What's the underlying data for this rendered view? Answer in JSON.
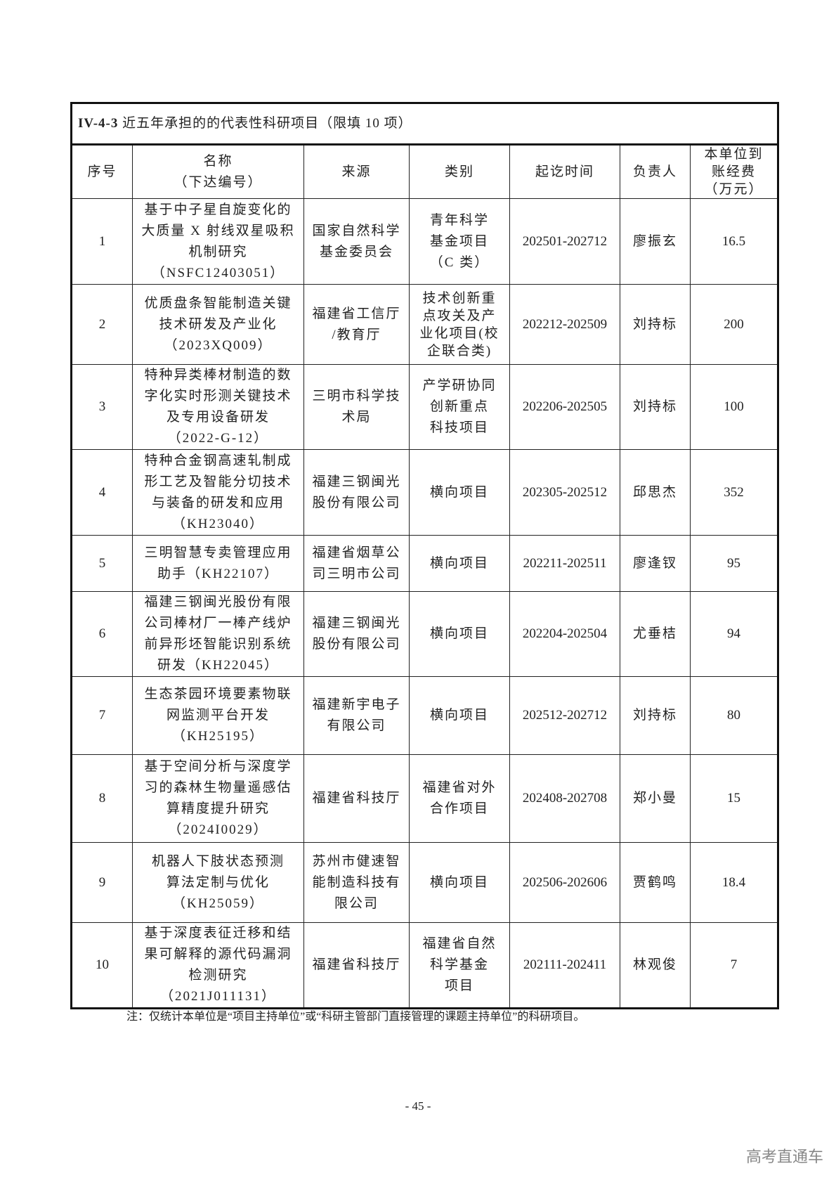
{
  "table": {
    "section_code": "IV-4-3",
    "title": "近五年承担的的代表性科研项目（限填 10 项）",
    "headers": [
      "序号",
      "名称\n（下达编号）",
      "来源",
      "类别",
      "起讫时间",
      "负责人",
      "本单位到\n账经费\n（万元）"
    ],
    "rows": [
      {
        "no": "1",
        "name": "基于中子星自旋变化的\n大质量 X 射线双星吸积\n机制研究\n（NSFC12403051）",
        "source": "国家自然科学\n基金委员会",
        "category": "青年科学\n基金项目\n（C 类）",
        "period": "202501-202712",
        "leader": "廖振玄",
        "funds": "16.5"
      },
      {
        "no": "2",
        "name": "优质盘条智能制造关键\n技术研发及产业化\n（2023XQ009）",
        "source": "福建省工信厅\n/教育厅",
        "category": "技术创新重\n点攻关及产\n业化项目(校\n企联合类)",
        "period": "202212-202509",
        "leader": "刘持标",
        "funds": "200"
      },
      {
        "no": "3",
        "name": "特种异类棒材制造的数\n字化实时形测关键技术\n及专用设备研发\n（2022-G-12）",
        "source": "三明市科学技\n术局",
        "category": "产学研协同\n创新重点\n科技项目",
        "period": "202206-202505",
        "leader": "刘持标",
        "funds": "100"
      },
      {
        "no": "4",
        "name": "特种合金钢高速轧制成\n形工艺及智能分切技术\n与装备的研发和应用\n（KH23040）",
        "source": "福建三钢闽光\n股份有限公司",
        "category": "横向项目",
        "period": "202305-202512",
        "leader": "邱思杰",
        "funds": "352"
      },
      {
        "no": "5",
        "name": "三明智慧专卖管理应用\n助手（KH22107）",
        "source": "福建省烟草公\n司三明市公司",
        "category": "横向项目",
        "period": "202211-202511",
        "leader": "廖逢钗",
        "funds": "95"
      },
      {
        "no": "6",
        "name": "福建三钢闽光股份有限\n公司棒材厂一棒产线炉\n前异形坯智能识别系统\n研发（KH22045）",
        "source": "福建三钢闽光\n股份有限公司",
        "category": "横向项目",
        "period": "202204-202504",
        "leader": "尤垂桔",
        "funds": "94"
      },
      {
        "no": "7",
        "name": "生态茶园环境要素物联\n网监测平台开发\n（KH25195）",
        "source": "福建新宇电子\n有限公司",
        "category": "横向项目",
        "period": "202512-202712",
        "leader": "刘持标",
        "funds": "80"
      },
      {
        "no": "8",
        "name": "基于空间分析与深度学\n习的森林生物量遥感估\n算精度提升研究\n（2024I0029）",
        "source": "福建省科技厅",
        "category": "福建省对外\n合作项目",
        "period": "202408-202708",
        "leader": "郑小曼",
        "funds": "15"
      },
      {
        "no": "9",
        "name": "机器人下肢状态预测\n算法定制与优化\n（KH25059）",
        "source": "苏州市健速智\n能制造科技有\n限公司",
        "category": "横向项目",
        "period": "202506-202606",
        "leader": "贾鹤鸣",
        "funds": "18.4"
      },
      {
        "no": "10",
        "name": "基于深度表征迁移和结\n果可解释的源代码漏洞\n检测研究\n（2021J011131）",
        "source": "福建省科技厅",
        "category": "福建省自然\n科学基金\n项目",
        "period": "202111-202411",
        "leader": "林观俊",
        "funds": "7"
      }
    ]
  },
  "note": "注：仅统计本单位是“项目主持单位”或“科研主管部门直接管理的课题主持单位”的科研项目。",
  "page_number": "- 45 -",
  "watermark": "高考直通车"
}
